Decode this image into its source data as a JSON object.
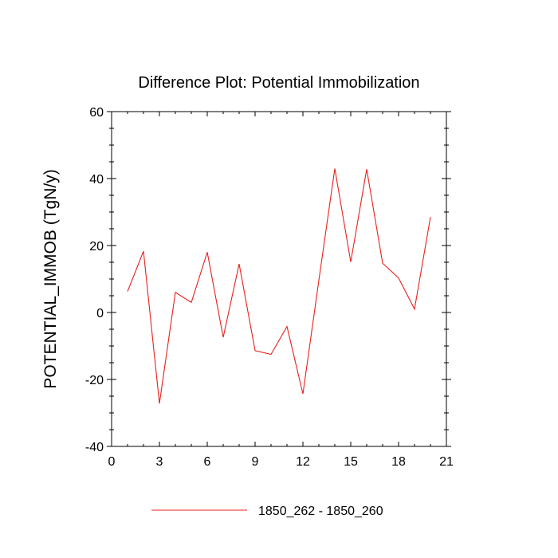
{
  "chart_data": {
    "type": "line",
    "title": "Difference Plot: Potential Immobilization",
    "xlabel": "",
    "ylabel": "POTENTIAL_IMMOB  (TgN/y)",
    "xlim": [
      0,
      21
    ],
    "ylim": [
      -40,
      60
    ],
    "xticks": [
      0,
      3,
      6,
      9,
      12,
      15,
      18,
      21
    ],
    "xtick_labels": [
      "0",
      "3",
      "6",
      "9",
      "12",
      "15",
      "18",
      "21"
    ],
    "yticks": [
      -40,
      -20,
      0,
      20,
      40,
      60
    ],
    "ytick_labels": [
      "-40",
      "-20",
      "0",
      "20",
      "40",
      "60"
    ],
    "grid": false,
    "legend_position": "bottom",
    "series": [
      {
        "name": "1850_262 - 1850_260",
        "color": "#e8201c",
        "x": [
          1,
          2,
          3,
          4,
          5,
          6,
          7,
          8,
          9,
          10,
          11,
          12,
          13,
          14,
          15,
          16,
          17,
          18,
          19,
          20
        ],
        "values": [
          6.3,
          18.3,
          -27.2,
          6.0,
          3.0,
          18.0,
          -7.4,
          14.5,
          -11.4,
          -12.5,
          -4.2,
          -24.3,
          9.6,
          43.0,
          15.1,
          42.8,
          14.7,
          10.3,
          1.0,
          28.5
        ]
      }
    ]
  }
}
